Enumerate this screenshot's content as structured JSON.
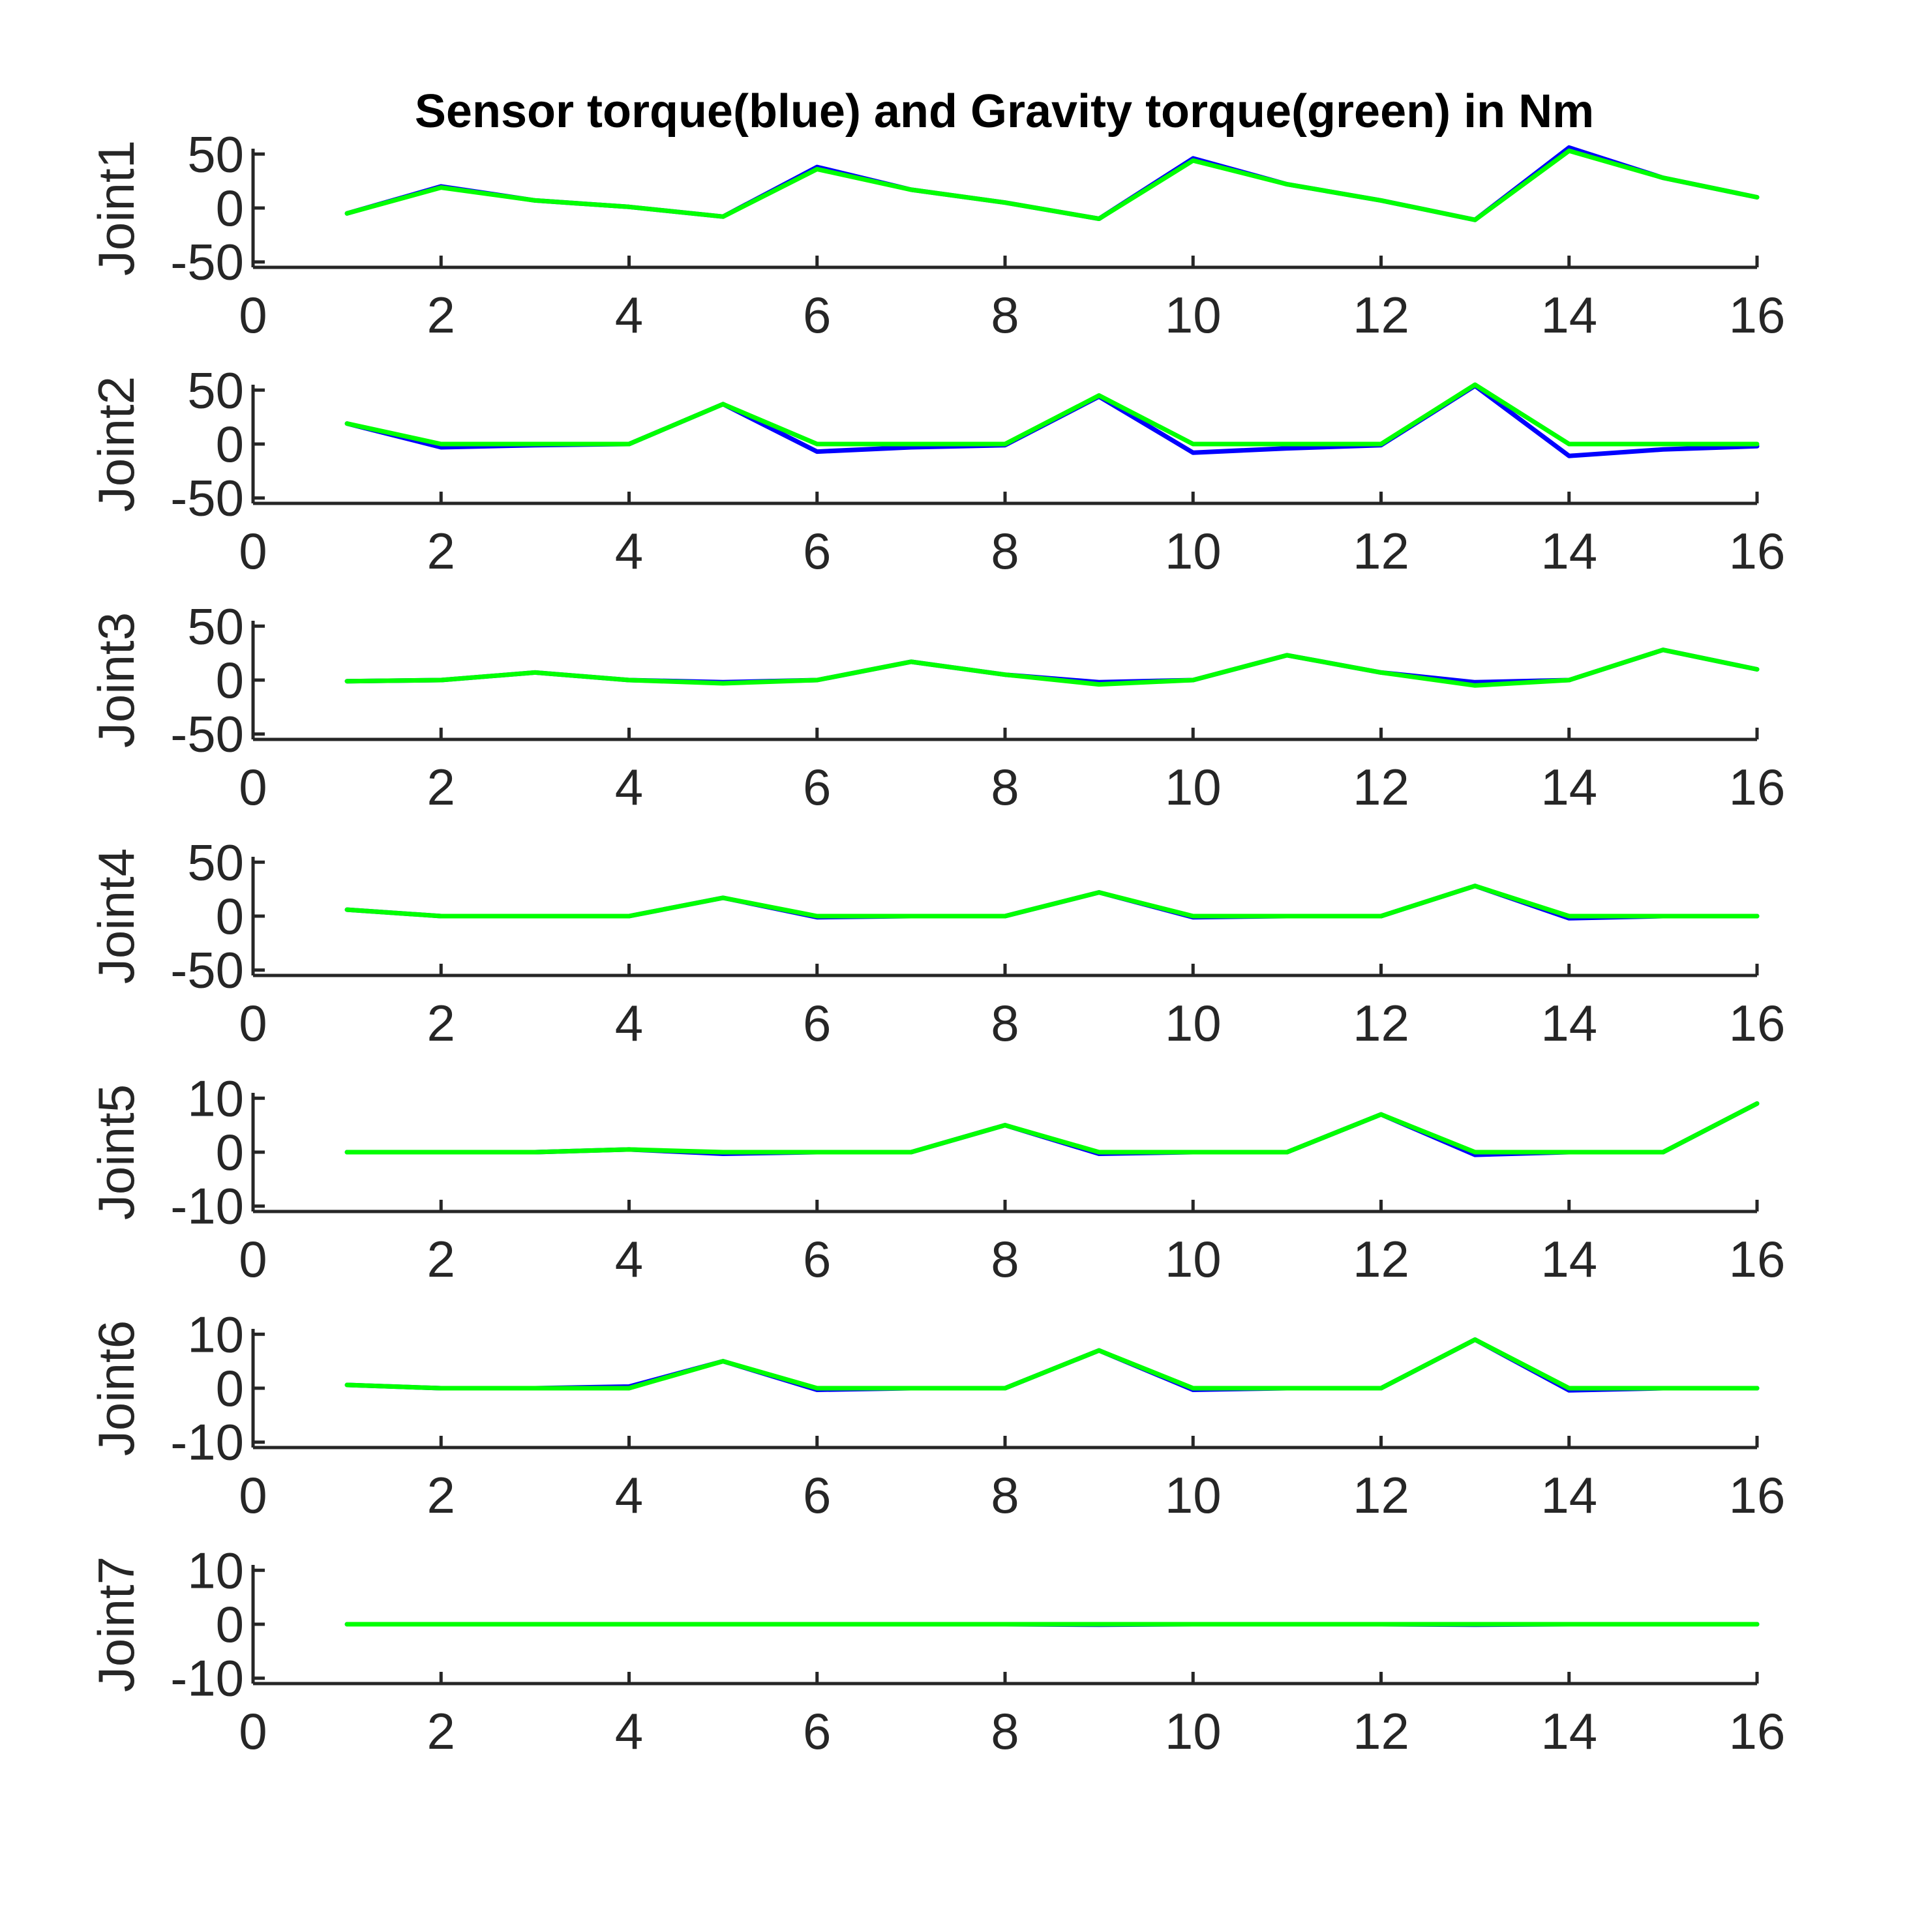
{
  "figure": {
    "title": "Sensor torque(blue) and Gravity torque(green) in Nm"
  },
  "chart_data": [
    {
      "type": "line",
      "ylabel": "Joint1",
      "xlim": [
        0,
        16
      ],
      "ylim": [
        -55,
        55
      ],
      "xticks": [
        0,
        2,
        4,
        6,
        8,
        10,
        12,
        14,
        16
      ],
      "yticks": [
        -50,
        0,
        50
      ],
      "x": [
        1,
        2,
        3,
        4,
        5,
        6,
        7,
        8,
        9,
        10,
        11,
        12,
        13,
        14,
        15,
        16
      ],
      "series": [
        {
          "color": "#0000ff",
          "values": [
            -5,
            20,
            7,
            1,
            -8,
            38,
            17,
            5,
            -10,
            46,
            22,
            7,
            -11,
            56,
            28,
            10
          ]
        },
        {
          "color": "#00ff00",
          "values": [
            -5,
            19,
            7,
            1,
            -8,
            36,
            17,
            5,
            -10,
            44,
            22,
            7,
            -11,
            53,
            28,
            10
          ]
        }
      ]
    },
    {
      "type": "line",
      "ylabel": "Joint2",
      "xlim": [
        0,
        16
      ],
      "ylim": [
        -55,
        55
      ],
      "xticks": [
        0,
        2,
        4,
        6,
        8,
        10,
        12,
        14,
        16
      ],
      "yticks": [
        -50,
        0,
        50
      ],
      "x": [
        1,
        2,
        3,
        4,
        5,
        6,
        7,
        8,
        9,
        10,
        11,
        12,
        13,
        14,
        15,
        16
      ],
      "series": [
        {
          "color": "#0000ff",
          "values": [
            19,
            -3,
            -1,
            0,
            37,
            -7,
            -3,
            -1,
            44,
            -8,
            -4,
            -1,
            54,
            -11,
            -5,
            -2
          ]
        },
        {
          "color": "#00ff00",
          "values": [
            19,
            0,
            0,
            0,
            37,
            0,
            0,
            0,
            45,
            0,
            0,
            0,
            55,
            0,
            0,
            0
          ]
        }
      ]
    },
    {
      "type": "line",
      "ylabel": "Joint3",
      "xlim": [
        0,
        16
      ],
      "ylim": [
        -55,
        55
      ],
      "xticks": [
        0,
        2,
        4,
        6,
        8,
        10,
        12,
        14,
        16
      ],
      "yticks": [
        -50,
        0,
        50
      ],
      "x": [
        1,
        2,
        3,
        4,
        5,
        6,
        7,
        8,
        9,
        10,
        11,
        12,
        13,
        14,
        15,
        16
      ],
      "series": [
        {
          "color": "#0000ff",
          "values": [
            -1,
            0,
            7,
            0,
            -2,
            0,
            17,
            5,
            -2,
            0,
            23,
            7,
            -2,
            0,
            28,
            10
          ]
        },
        {
          "color": "#00ff00",
          "values": [
            -1,
            0,
            7,
            0,
            -3,
            0,
            17,
            5,
            -4,
            0,
            23,
            7,
            -5,
            0,
            28,
            10
          ]
        }
      ]
    },
    {
      "type": "line",
      "ylabel": "Joint4",
      "xlim": [
        0,
        16
      ],
      "ylim": [
        -55,
        55
      ],
      "xticks": [
        0,
        2,
        4,
        6,
        8,
        10,
        12,
        14,
        16
      ],
      "yticks": [
        -50,
        0,
        50
      ],
      "x": [
        1,
        2,
        3,
        4,
        5,
        6,
        7,
        8,
        9,
        10,
        11,
        12,
        13,
        14,
        15,
        16
      ],
      "series": [
        {
          "color": "#0000ff",
          "values": [
            6,
            0,
            0,
            0,
            17,
            -1,
            0,
            0,
            22,
            -1,
            0,
            0,
            28,
            -2,
            0,
            0
          ]
        },
        {
          "color": "#00ff00",
          "values": [
            6,
            0,
            0,
            0,
            17,
            0,
            0,
            0,
            22,
            0,
            0,
            0,
            28,
            0,
            0,
            0
          ]
        }
      ]
    },
    {
      "type": "line",
      "ylabel": "Joint5",
      "xlim": [
        0,
        16
      ],
      "ylim": [
        -11,
        11
      ],
      "xticks": [
        0,
        2,
        4,
        6,
        8,
        10,
        12,
        14,
        16
      ],
      "yticks": [
        -10,
        0,
        10
      ],
      "x": [
        1,
        2,
        3,
        4,
        5,
        6,
        7,
        8,
        9,
        10,
        11,
        12,
        13,
        14,
        15,
        16
      ],
      "series": [
        {
          "color": "#0000ff",
          "values": [
            0,
            0,
            0,
            0.5,
            -0.3,
            0,
            0,
            5,
            -0.3,
            0,
            0,
            7,
            -0.5,
            0,
            0,
            9
          ]
        },
        {
          "color": "#00ff00",
          "values": [
            0,
            0,
            0,
            0.5,
            0,
            0,
            0,
            5,
            0,
            0,
            0,
            7,
            0,
            0,
            0,
            9
          ]
        }
      ]
    },
    {
      "type": "line",
      "ylabel": "Joint6",
      "xlim": [
        0,
        16
      ],
      "ylim": [
        -11,
        11
      ],
      "xticks": [
        0,
        2,
        4,
        6,
        8,
        10,
        12,
        14,
        16
      ],
      "yticks": [
        -10,
        0,
        10
      ],
      "x": [
        1,
        2,
        3,
        4,
        5,
        6,
        7,
        8,
        9,
        10,
        11,
        12,
        13,
        14,
        15,
        16
      ],
      "series": [
        {
          "color": "#0000ff",
          "values": [
            0.6,
            0,
            0,
            0.3,
            5,
            -0.3,
            0,
            0,
            7,
            -0.3,
            0,
            0,
            9,
            -0.4,
            0,
            0
          ]
        },
        {
          "color": "#00ff00",
          "values": [
            0.6,
            0,
            0,
            0,
            5,
            0,
            0,
            0,
            7,
            0,
            0,
            0,
            9,
            0,
            0,
            0
          ]
        }
      ]
    },
    {
      "type": "line",
      "ylabel": "Joint7",
      "xlim": [
        0,
        16
      ],
      "ylim": [
        -11,
        11
      ],
      "xticks": [
        0,
        2,
        4,
        6,
        8,
        10,
        12,
        14,
        16
      ],
      "yticks": [
        -10,
        0,
        10
      ],
      "x": [
        1,
        2,
        3,
        4,
        5,
        6,
        7,
        8,
        9,
        10,
        11,
        12,
        13,
        14,
        15,
        16
      ],
      "series": [
        {
          "color": "#0000ff",
          "values": [
            0,
            0,
            0,
            0,
            0,
            0,
            0,
            0,
            -0.1,
            0,
            0,
            0,
            -0.1,
            0,
            0,
            0
          ]
        },
        {
          "color": "#00ff00",
          "values": [
            0,
            0,
            0,
            0,
            0,
            0,
            0,
            0,
            0,
            0,
            0,
            0,
            0,
            0,
            0,
            0
          ]
        }
      ]
    }
  ]
}
